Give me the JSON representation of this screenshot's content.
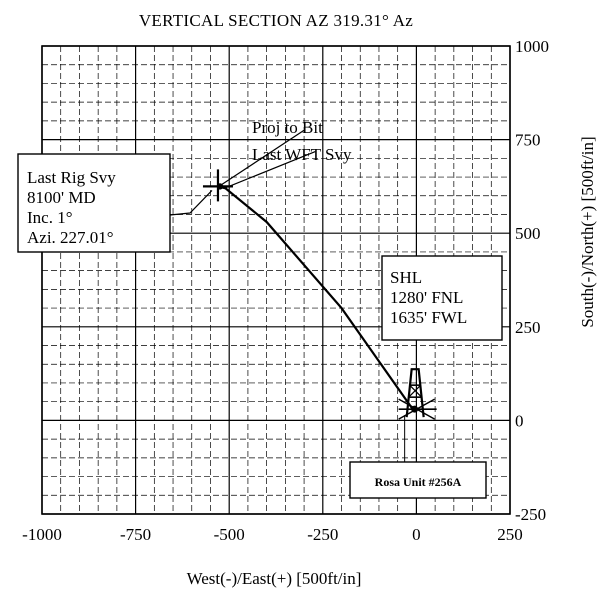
{
  "chart_data": {
    "type": "line",
    "title": "VERTICAL SECTION AZ 319.31° Az",
    "xlabel": "West(-)/East(+) [500ft/in]",
    "ylabel": "South(-)/North(+) [500ft/in]",
    "xlim": [
      -1000,
      250
    ],
    "ylim": [
      -250,
      1000
    ],
    "x_ticks": [
      -1000,
      -750,
      -500,
      -250,
      0,
      250
    ],
    "y_ticks": [
      -250,
      0,
      250,
      500,
      750,
      1000
    ],
    "x_tick_labels": [
      "-1000",
      "-750",
      "-500",
      "-250",
      "0",
      "250"
    ],
    "y_tick_labels": [
      "-250",
      "0",
      "250",
      "500",
      "750",
      "1000"
    ],
    "grid": true,
    "series": [
      {
        "x": [
          -10,
          -200,
          -400,
          -510,
          -530
        ],
        "y": [
          30,
          300,
          530,
          620,
          625
        ]
      }
    ],
    "markers": {
      "last_rig_svy": {
        "x": -530,
        "y": 625
      },
      "shl": {
        "x": -10,
        "y": 30
      }
    },
    "annotations": {
      "proj_to_bit": "Proj to Bit",
      "last_wft_svy": "Last WFT Svy",
      "last_rig_svy": [
        "Last Rig Svy",
        "8100' MD",
        "Inc. 1°",
        "Azi. 227.01°"
      ],
      "shl": [
        "SHL",
        "1280' FNL",
        "1635' FWL"
      ],
      "well_name": "Rosa Unit #256A"
    }
  }
}
